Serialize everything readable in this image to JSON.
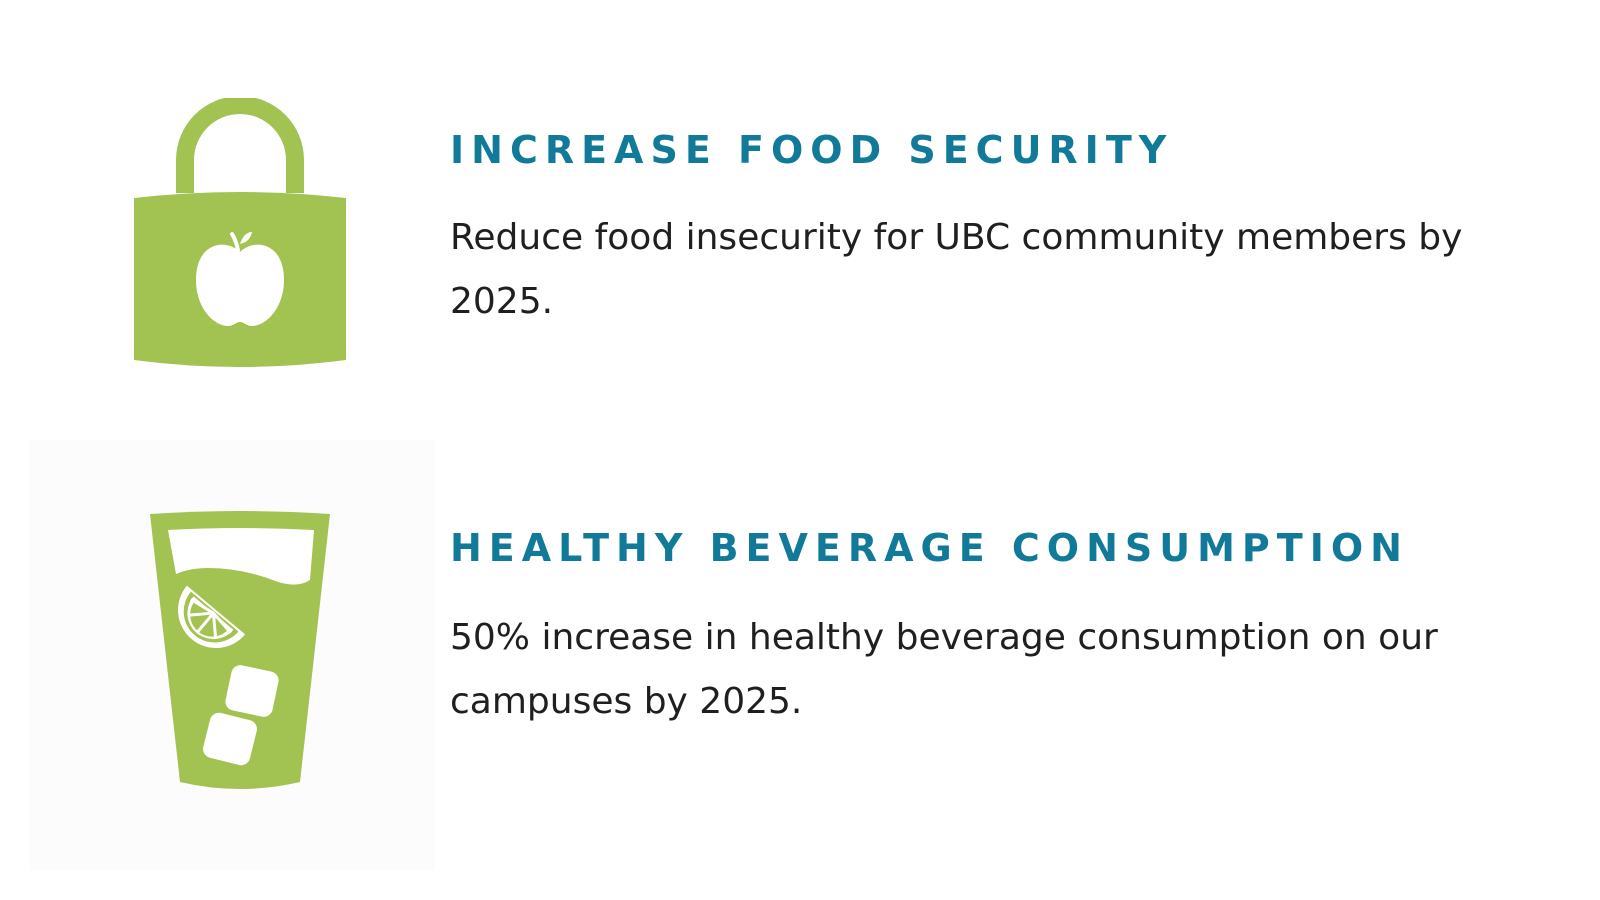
{
  "goals": [
    {
      "title": "INCREASE FOOD SECURITY",
      "text": "Reduce food insecurity for UBC community members by 2025.",
      "icon": "padlock-apple-icon"
    },
    {
      "title": "HEALTHY BEVERAGE CONSUMPTION",
      "text": "50% increase in healthy beverage consumption on our campuses by 2025.",
      "icon": "glass-lime-ice-icon"
    }
  ],
  "colors": {
    "icon_green": "#a2c252",
    "title_teal": "#127a99",
    "body_text": "#1f1f1f"
  }
}
